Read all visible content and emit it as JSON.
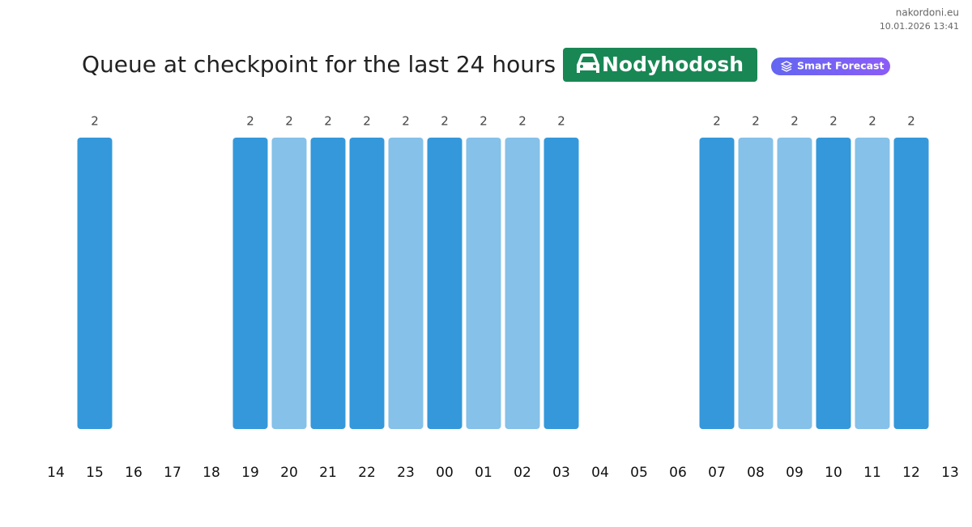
{
  "site": "nakordoni.eu",
  "timestamp": "10.01.2026 13:41",
  "chart_data": {
    "type": "bar",
    "title": "Queue at checkpoint for the last 24 hours",
    "checkpoint": "Nodyhodosh",
    "badge": "Smart Forecast",
    "categories": [
      "14",
      "15",
      "16",
      "17",
      "18",
      "19",
      "20",
      "21",
      "22",
      "23",
      "00",
      "01",
      "02",
      "03",
      "04",
      "05",
      "06",
      "07",
      "08",
      "09",
      "10",
      "11",
      "12",
      "13"
    ],
    "values": [
      null,
      2,
      null,
      null,
      null,
      2,
      2,
      2,
      2,
      2,
      2,
      2,
      2,
      2,
      null,
      null,
      null,
      2,
      2,
      2,
      2,
      2,
      2,
      null
    ],
    "colors": [
      null,
      "#3498db",
      null,
      null,
      null,
      "#3498db",
      "#85c1e9",
      "#3498db",
      "#3498db",
      "#85c1e9",
      "#3498db",
      "#85c1e9",
      "#85c1e9",
      "#3498db",
      null,
      null,
      null,
      "#3498db",
      "#85c1e9",
      "#85c1e9",
      "#3498db",
      "#85c1e9",
      "#3498db",
      null
    ]
  }
}
